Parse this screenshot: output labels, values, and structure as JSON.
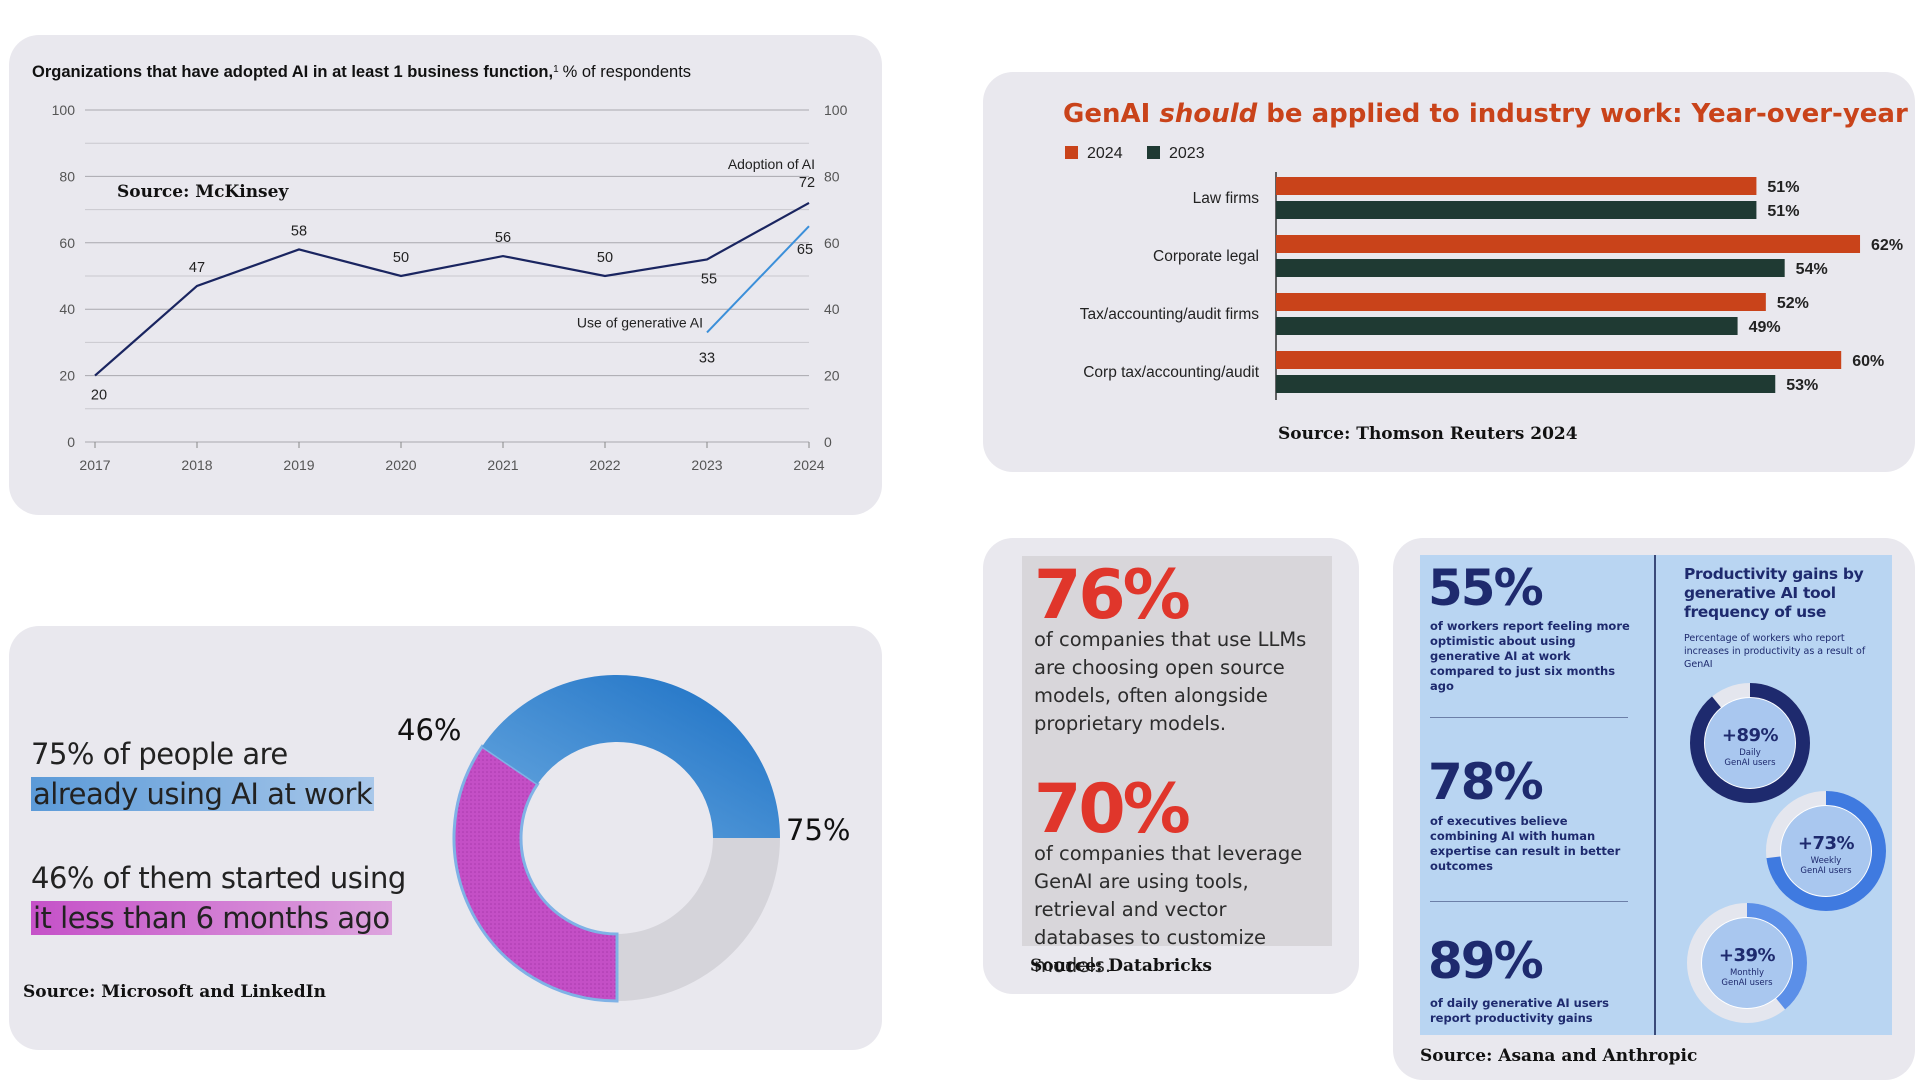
{
  "chart_data": [
    {
      "type": "line",
      "title": "Organizations that have adopted AI in at least 1 business function,",
      "title_superscript": "1",
      "subtitle": "% of respondents",
      "annotation": "Source: McKinsey",
      "x": [
        "2017",
        "2018",
        "2019",
        "2020",
        "2021",
        "2022",
        "2023",
        "2024"
      ],
      "ylim": [
        0,
        100
      ],
      "yticks": [
        "0",
        "20",
        "40",
        "60",
        "80",
        "100"
      ],
      "series": [
        {
          "name": "Adoption of AI",
          "x": [
            "2017",
            "2018",
            "2019",
            "2020",
            "2021",
            "2022",
            "2023",
            "2024"
          ],
          "values": [
            20,
            47,
            58,
            50,
            56,
            50,
            55,
            72
          ],
          "labels": [
            "20",
            "47",
            "58",
            "50",
            "56",
            "50",
            "55",
            "72"
          ],
          "color": "#1a2560"
        },
        {
          "name": "Use of generative AI",
          "x": [
            "2023",
            "2024"
          ],
          "values": [
            33,
            65
          ],
          "labels": [
            "33",
            "65"
          ],
          "color": "#3b8fd9"
        }
      ],
      "grid": true
    },
    {
      "type": "bar",
      "orientation": "horizontal",
      "title_parts": [
        "GenAI ",
        "should",
        " be applied to industry work: Year-over-year"
      ],
      "annotation": "Source: Thomson Reuters 2024",
      "categories": [
        "Law firms",
        "Corporate legal",
        "Tax/accounting/audit firms",
        "Corp tax/accounting/audit"
      ],
      "series": [
        {
          "name": "2024",
          "values": [
            51,
            62,
            52,
            60
          ],
          "labels": [
            "51%",
            "62%",
            "52%",
            "60%"
          ],
          "color": "#c9431a"
        },
        {
          "name": "2023",
          "values": [
            51,
            54,
            49,
            53
          ],
          "labels": [
            "51%",
            "54%",
            "49%",
            "53%"
          ],
          "color": "#1f3a33"
        }
      ],
      "legend": "top-left"
    },
    {
      "type": "pie",
      "style": "donut",
      "annotation": "Source: Microsoft and LinkedIn",
      "text_lines": [
        {
          "plain": "75% of people are",
          "highlight": "already using AI at work"
        },
        {
          "plain": "46% of them started using",
          "highlight": "it less than 6 months ago"
        }
      ],
      "slices": [
        {
          "label": "75%",
          "value": 75,
          "color": "#2a7fd0"
        },
        {
          "label": "46%",
          "value": 46,
          "color": "#c44fc6"
        }
      ],
      "remainder_color": "#d5d4da"
    }
  ],
  "databricks": {
    "stat1": "76%",
    "text1": "of companies that use LLMs are choosing open source models, often alongside proprietary models.",
    "stat2": "70%",
    "text2": "of companies that leverage GenAI are using tools, retrieval and vector databases to customize models.",
    "source": "Source: Databricks"
  },
  "asana": {
    "stats": [
      {
        "value": "55%",
        "text": "of workers report feeling more optimistic about using generative AI at work compared to just six months ago"
      },
      {
        "value": "78%",
        "text": "of executives believe combining AI with human expertise can result in better outcomes"
      },
      {
        "value": "89%",
        "text": "of daily generative AI users report productivity gains"
      }
    ],
    "right_title": "Productivity gains by generative AI tool frequency of use",
    "right_subtitle": "Percentage of workers who report increases in productivity as a result of GenAI",
    "rings": [
      {
        "label": "+89%",
        "sub1": "Daily",
        "sub2": "GenAI users",
        "value": 89,
        "color": "#1e2a6e"
      },
      {
        "label": "+73%",
        "sub1": "Weekly",
        "sub2": "GenAI users",
        "value": 73,
        "color": "#3f7ae0"
      },
      {
        "label": "+39%",
        "sub1": "Monthly",
        "sub2": "GenAI users",
        "value": 39,
        "color": "#5b8fe8"
      }
    ],
    "source": "Source: Asana and Anthropic"
  }
}
